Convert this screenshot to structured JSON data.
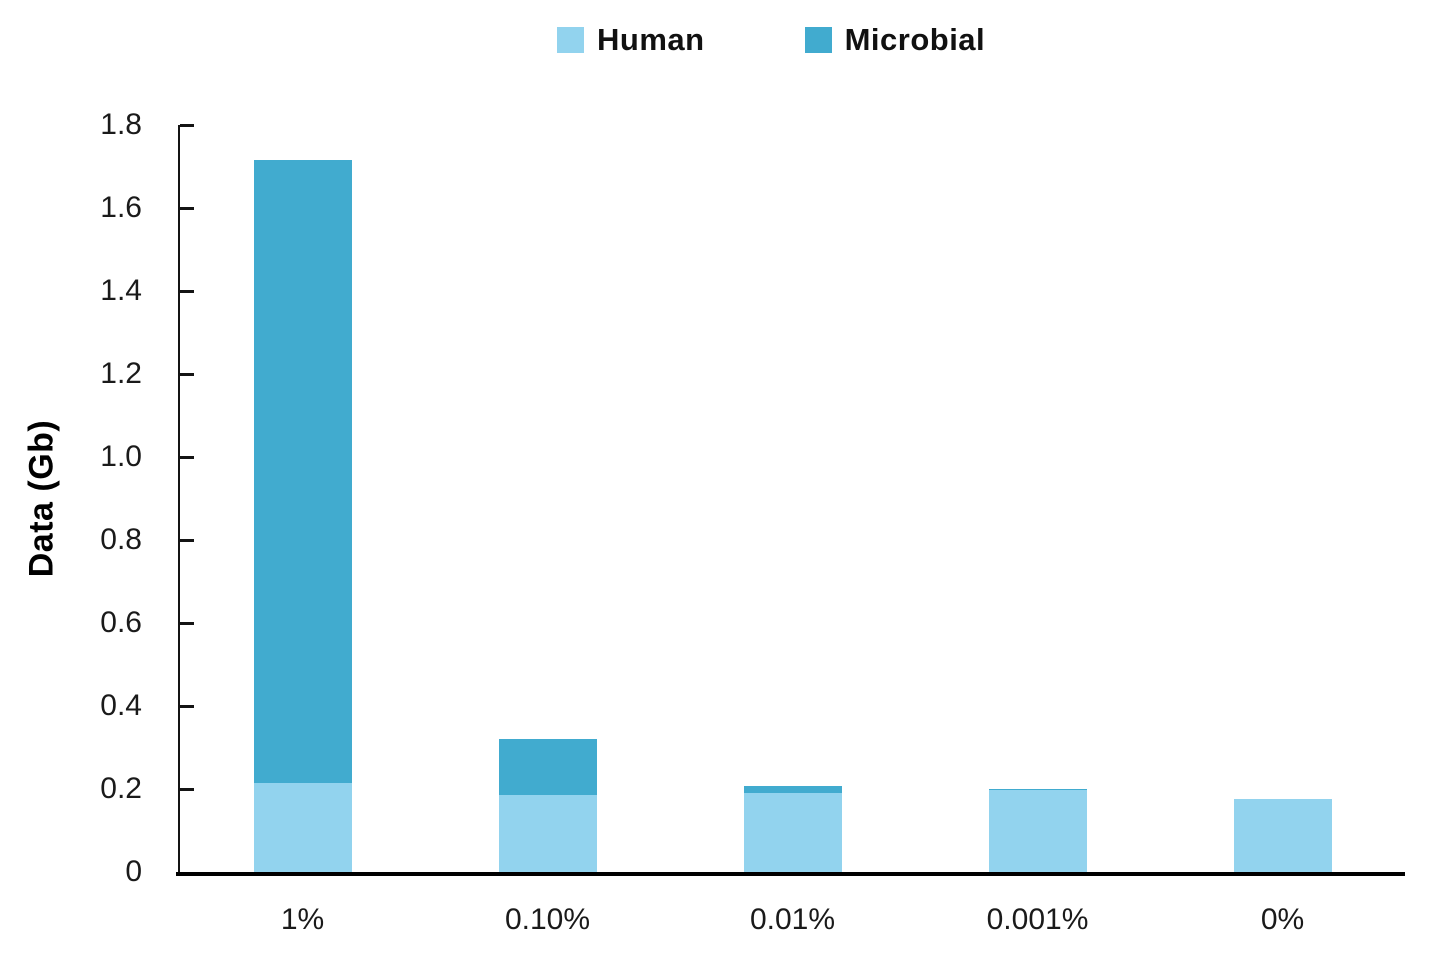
{
  "chart_data": {
    "type": "bar",
    "stacked": true,
    "title": "",
    "ylabel": "Data (Gb)",
    "xlabel": "",
    "categories": [
      "1%",
      "0.10%",
      "0.01%",
      "0.001%",
      "0%"
    ],
    "series": [
      {
        "name": "Human",
        "color": "#92D3EE",
        "values": [
          0.214,
          0.185,
          0.19,
          0.197,
          0.176
        ]
      },
      {
        "name": "Microbial",
        "color": "#41ABCF",
        "values": [
          1.5,
          0.135,
          0.017,
          0.002,
          0
        ]
      }
    ],
    "totals": [
      1.714,
      0.32,
      0.207,
      0.199,
      0.176
    ],
    "ylim": [
      0,
      1.8
    ],
    "yticks": [
      0,
      0.2,
      0.4,
      0.6,
      0.8,
      1.0,
      1.2,
      1.4,
      1.6,
      1.8
    ],
    "ytick_labels": [
      "0",
      "0.2",
      "0.4",
      "0.6",
      "0.8",
      "1.0",
      "1.2",
      "1.4",
      "1.6",
      "1.8"
    ],
    "grid": false,
    "legend_position": "top-center",
    "axis_color": "#000000",
    "text_color": "#1a1a1a"
  }
}
